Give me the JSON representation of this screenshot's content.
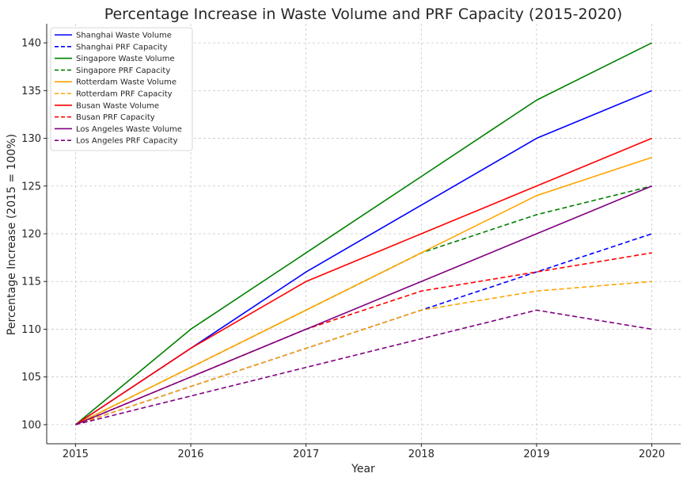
{
  "chart_data": {
    "type": "line",
    "title": "Percentage Increase in Waste Volume and PRF Capacity (2015-2020)",
    "xlabel": "Year",
    "ylabel": "Percentage Increase (2015 = 100%)",
    "x": [
      2015,
      2016,
      2017,
      2018,
      2019,
      2020
    ],
    "xlim": [
      2014.75,
      2020.25
    ],
    "ylim": [
      98,
      142
    ],
    "yticks": [
      100,
      105,
      110,
      115,
      120,
      125,
      130,
      135,
      140
    ],
    "grid": true,
    "legend_position": "top-left",
    "series": [
      {
        "name": "Shanghai Waste Volume",
        "color": "#0000ff",
        "style": "solid",
        "values": [
          100,
          108,
          116,
          123,
          130,
          135
        ]
      },
      {
        "name": "Shanghai PRF Capacity",
        "color": "#0000ff",
        "style": "dashed",
        "values": [
          100,
          104,
          108,
          112,
          116,
          120
        ]
      },
      {
        "name": "Singapore Waste Volume",
        "color": "#008000",
        "style": "solid",
        "values": [
          100,
          110,
          118,
          126,
          134,
          140
        ]
      },
      {
        "name": "Singapore PRF Capacity",
        "color": "#008000",
        "style": "dashed",
        "values": [
          100,
          106,
          112,
          118,
          122,
          125
        ]
      },
      {
        "name": "Rotterdam Waste Volume",
        "color": "#ffa500",
        "style": "solid",
        "values": [
          100,
          106,
          112,
          118,
          124,
          128
        ]
      },
      {
        "name": "Rotterdam PRF Capacity",
        "color": "#ffa500",
        "style": "dashed",
        "values": [
          100,
          104,
          108,
          112,
          114,
          115
        ]
      },
      {
        "name": "Busan Waste Volume",
        "color": "#ff0000",
        "style": "solid",
        "values": [
          100,
          108,
          115,
          120,
          125,
          130
        ]
      },
      {
        "name": "Busan PRF Capacity",
        "color": "#ff0000",
        "style": "dashed",
        "values": [
          100,
          105,
          110,
          114,
          116,
          118
        ]
      },
      {
        "name": "Los Angeles Waste Volume",
        "color": "#800080",
        "style": "solid",
        "values": [
          100,
          105,
          110,
          115,
          120,
          125
        ]
      },
      {
        "name": "Los Angeles PRF Capacity",
        "color": "#800080",
        "style": "dashed",
        "values": [
          100,
          103,
          106,
          109,
          112,
          110
        ]
      }
    ]
  }
}
